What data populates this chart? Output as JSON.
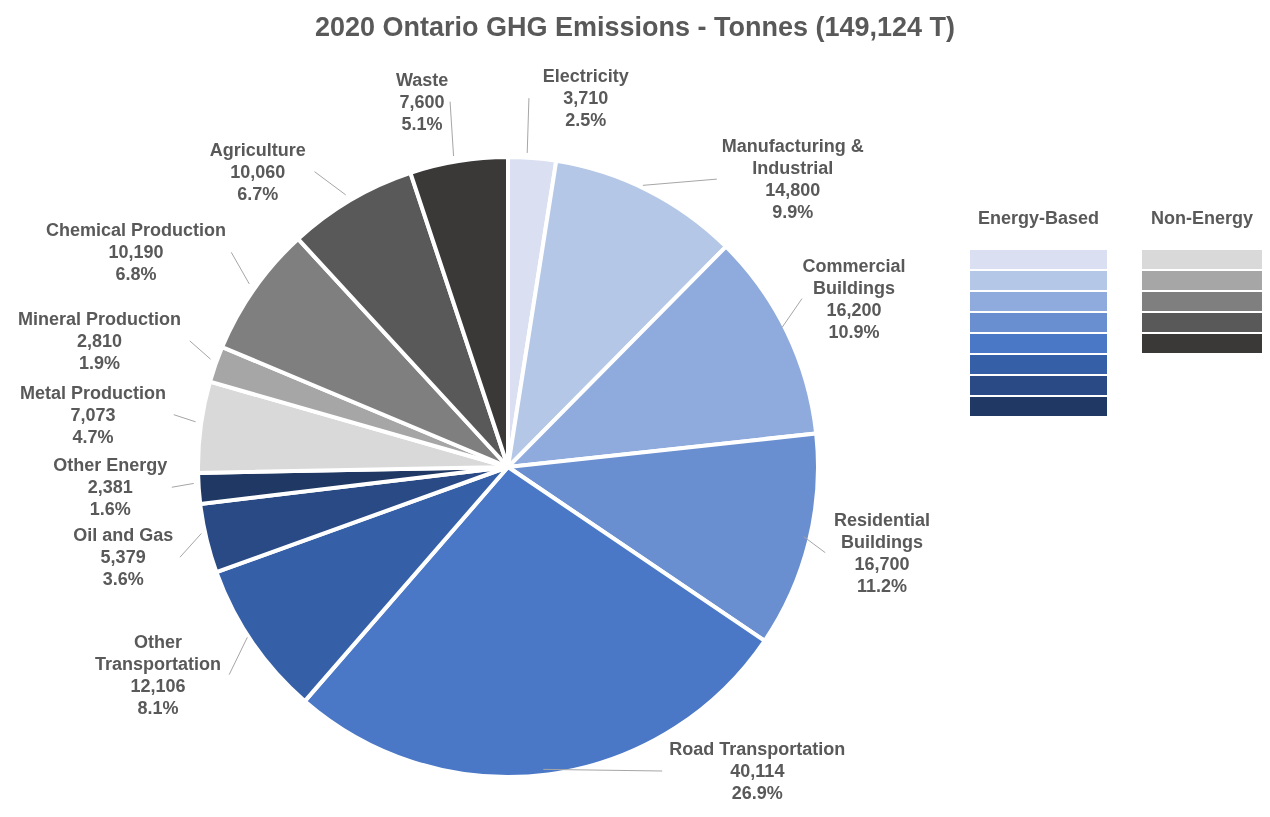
{
  "chart_data": {
    "type": "pie",
    "title": "2020 Ontario GHG Emissions - Tonnes (149,124 T)",
    "categories": [
      "Electricity",
      "Manufacturing & Industrial",
      "Commercial Buildings",
      "Residential Buildings",
      "Road Transportation",
      "Other Transportation",
      "Oil and Gas",
      "Other Energy",
      "Metal Production",
      "Mineral Production",
      "Chemical Production",
      "Agriculture",
      "Waste"
    ],
    "values": [
      3710,
      14800,
      16200,
      16700,
      40114,
      12106,
      5379,
      2381,
      7073,
      2810,
      10190,
      10060,
      7600
    ],
    "colors": [
      "#dae0f2",
      "#b4c7e7",
      "#8faadc",
      "#6a8fd0",
      "#4a78c6",
      "#3560a8",
      "#2a4a85",
      "#1f3864",
      "#d9d9d9",
      "#a6a6a6",
      "#7f7f7f",
      "#595959",
      "#3b3838"
    ],
    "value_labels": [
      "3,710\n2.5%",
      "14,800\n9.9%",
      "16,200\n10.9%",
      "16,700\n11.2%",
      "40,114\n26.9%",
      "12,106\n8.1%",
      "5,379\n3.6%",
      "2,381\n1.6%",
      "7,073\n4.7%",
      "2,810\n1.9%",
      "10,190\n6.8%",
      "10,060\n6.7%",
      "7,600\n5.1%"
    ],
    "annotations": [
      "Energy-Based",
      "Non-Energy"
    ]
  }
}
